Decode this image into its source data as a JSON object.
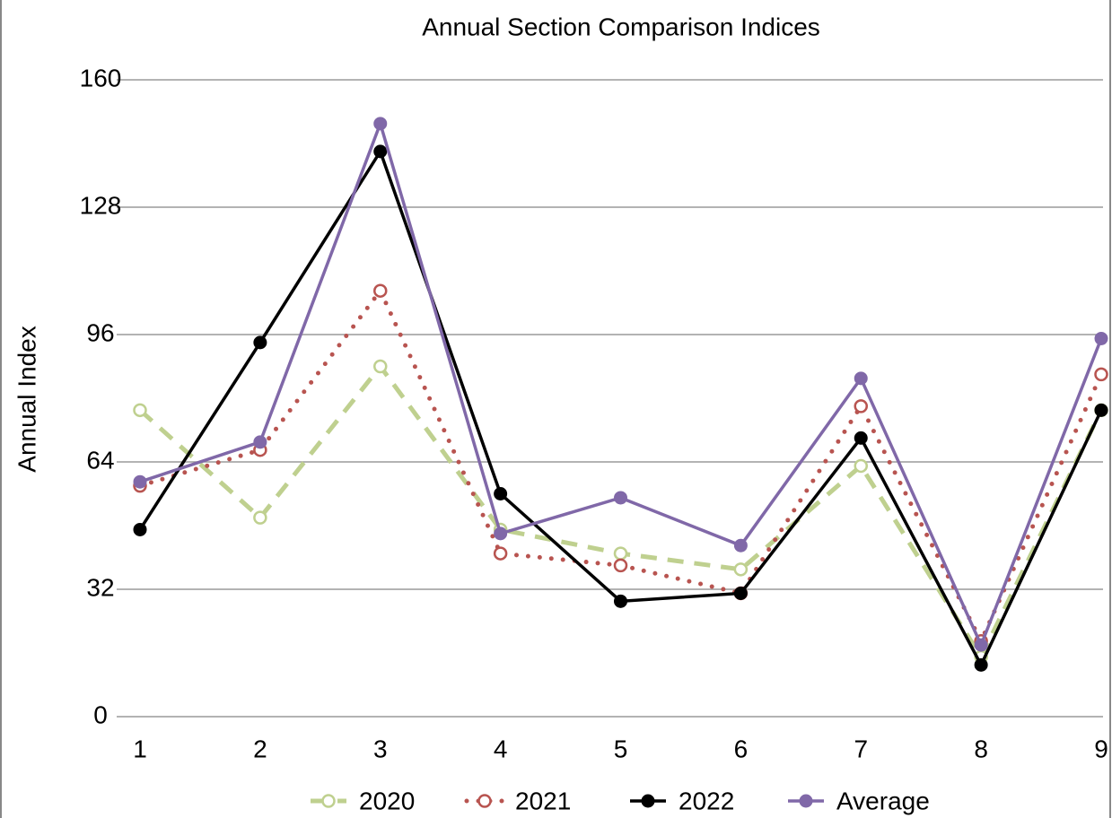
{
  "chart_data": {
    "type": "line",
    "title": "Annual Section Comparison Indices",
    "y_label": "Annual Index",
    "x": [
      1,
      2,
      3,
      4,
      5,
      6,
      7,
      8,
      9
    ],
    "xlim": [
      1,
      9
    ],
    "xticks": [
      1,
      2,
      3,
      4,
      5,
      6,
      7,
      8,
      9
    ],
    "ylim": [
      0,
      160
    ],
    "yticks": [
      0,
      32,
      64,
      96,
      128,
      160
    ],
    "grid": true,
    "legend": "bottom",
    "series": [
      {
        "name": "2020",
        "color": "#bfd08f",
        "line_style": "dashed",
        "marker": "open",
        "values": [
          77,
          50,
          88,
          47,
          41,
          37,
          63,
          15,
          77
        ]
      },
      {
        "name": "2021",
        "color": "#b85450",
        "line_style": "dotted",
        "marker": "open",
        "values": [
          58,
          67,
          107,
          41,
          38,
          31,
          78,
          19,
          86
        ]
      },
      {
        "name": "2022",
        "color": "#000000",
        "line_style": "solid",
        "marker": "filled",
        "values": [
          47,
          94,
          142,
          56,
          29,
          31,
          70,
          13,
          77
        ]
      },
      {
        "name": "Average",
        "color": "#8068a8",
        "line_style": "solid",
        "marker": "filled",
        "values": [
          59,
          69,
          149,
          46,
          55,
          43,
          85,
          18,
          95
        ]
      }
    ]
  }
}
